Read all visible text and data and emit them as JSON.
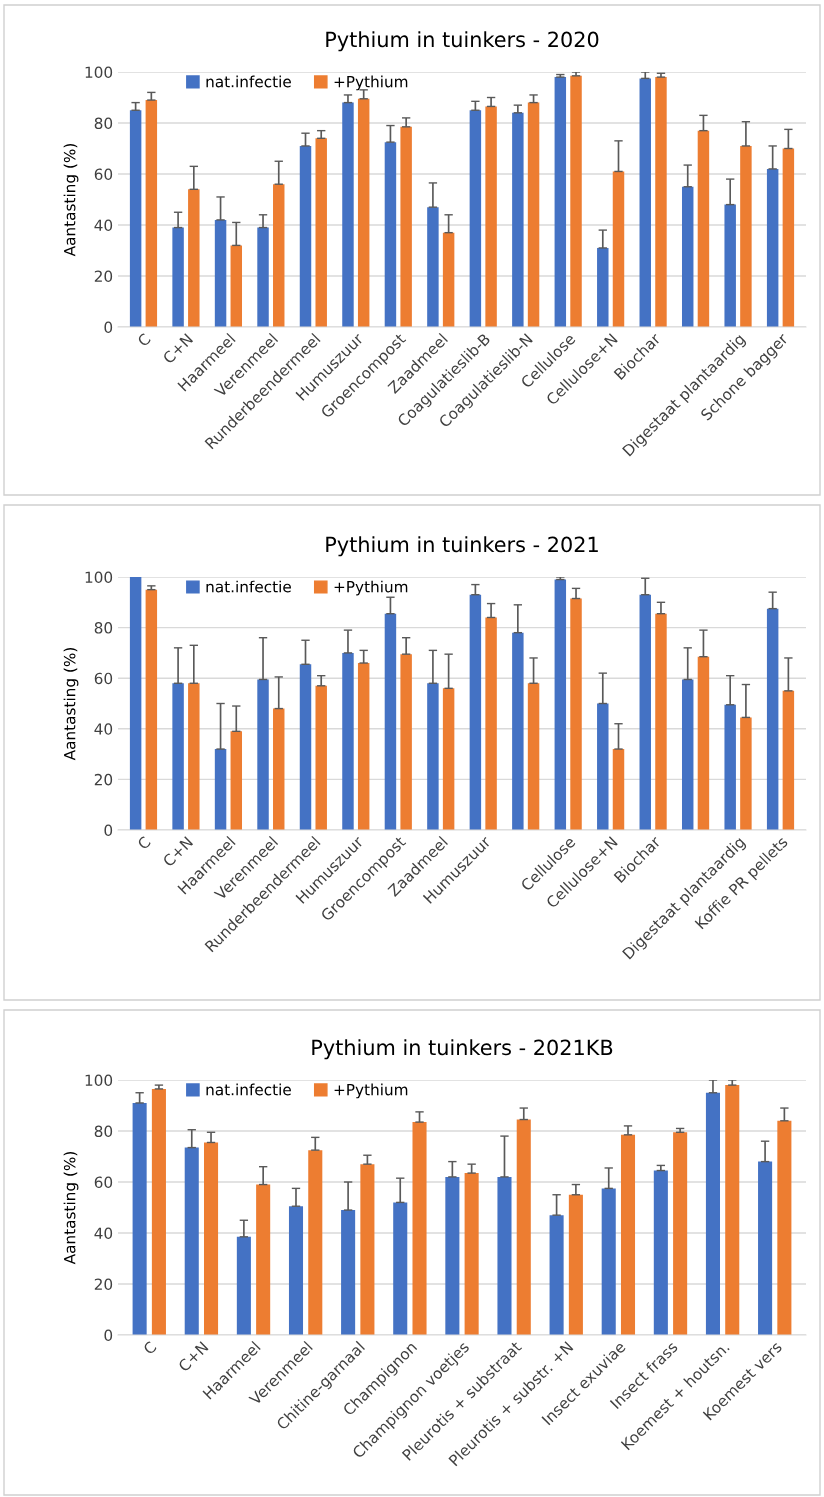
{
  "chart_data": [
    {
      "type": "bar",
      "title": "Pythium in tuinkers - 2020",
      "ylabel": "Aantasting (%)",
      "ylim": [
        0,
        100
      ],
      "yticks": [
        0,
        20,
        40,
        60,
        80,
        100
      ],
      "grid": "y",
      "legend": "top left",
      "categories": [
        "C",
        "C+N",
        "Haarmeel",
        "Verenmeel",
        "Runderbeendermeel",
        "Humuszuur",
        "Groencompost",
        "Zaadmeel",
        "Coagulatieslib-B",
        "Coagulatieslib-N",
        "Cellulose",
        "Cellulose+N",
        "Biochar",
        null,
        "Digestaat plantaardig",
        "Schone bagger"
      ],
      "series": [
        {
          "name": "nat.infectie",
          "color": "#4472c4",
          "values": [
            85,
            39,
            42,
            39,
            71,
            88,
            72.5,
            47,
            85,
            84,
            98,
            31,
            97.5,
            55,
            48,
            62
          ],
          "errors": [
            [
              85,
              88
            ],
            [
              39,
              45
            ],
            [
              42,
              51
            ],
            [
              39,
              44
            ],
            [
              71,
              76
            ],
            [
              88,
              91
            ],
            [
              72.5,
              79
            ],
            [
              47,
              56.5
            ],
            [
              85,
              88.5
            ],
            [
              84,
              87
            ],
            [
              98,
              99
            ],
            [
              31,
              38
            ],
            [
              97.5,
              100
            ],
            [
              55,
              63.5
            ],
            [
              48,
              58
            ],
            [
              62,
              71
            ]
          ]
        },
        {
          "name": "+Pythium",
          "color": "#ed7d31",
          "values": [
            89,
            54,
            32,
            56,
            74,
            89.5,
            78.5,
            37,
            86.5,
            88,
            98.5,
            61,
            98,
            77,
            71,
            70
          ],
          "errors": [
            [
              89,
              92
            ],
            [
              54,
              63
            ],
            [
              32,
              41
            ],
            [
              56,
              65
            ],
            [
              74,
              77
            ],
            [
              89.5,
              93
            ],
            [
              78.5,
              82
            ],
            [
              37,
              44
            ],
            [
              86.5,
              90
            ],
            [
              88,
              91
            ],
            [
              98.5,
              100
            ],
            [
              61,
              73
            ],
            [
              98,
              99.5
            ],
            [
              77,
              83
            ],
            [
              71,
              80.5
            ],
            [
              70,
              77.5
            ]
          ]
        }
      ]
    },
    {
      "type": "bar",
      "title": "Pythium in tuinkers - 2021",
      "ylabel": "Aantasting (%)",
      "ylim": [
        0,
        100
      ],
      "yticks": [
        0,
        20,
        40,
        60,
        80,
        100
      ],
      "grid": "y",
      "legend": "top left",
      "categories": [
        "C",
        "C+N",
        "Haarmeel",
        "Verenmeel",
        "Runderbeendermeel",
        "Humuszuur",
        "Groencompost",
        "Zaadmeel",
        "Humuszuur",
        null,
        "Cellulose",
        "Cellulose+N",
        "Biochar",
        null,
        "Digestaat plantaardig",
        "Koffie PR pellets"
      ],
      "series": [
        {
          "name": "nat.infectie",
          "color": "#4472c4",
          "values": [
            100,
            58,
            32,
            59.5,
            65.5,
            70,
            85.5,
            58,
            93,
            78,
            99,
            50,
            93,
            59.5,
            49.5,
            87.5
          ],
          "errors": [
            null,
            [
              58,
              72
            ],
            [
              32,
              50
            ],
            [
              59.5,
              76
            ],
            [
              65.5,
              75
            ],
            [
              70,
              79
            ],
            [
              85.5,
              92
            ],
            [
              58,
              71
            ],
            [
              93,
              97
            ],
            [
              78,
              89
            ],
            [
              99,
              100
            ],
            [
              50,
              62
            ],
            [
              93,
              99.5
            ],
            [
              59.5,
              72
            ],
            [
              49.5,
              61
            ],
            [
              87.5,
              94
            ]
          ]
        },
        {
          "name": "+Pythium",
          "color": "#ed7d31",
          "values": [
            95,
            58,
            39,
            48,
            57,
            66,
            69.5,
            56,
            84,
            58,
            91.5,
            32,
            85.5,
            68.5,
            44.5,
            55
          ],
          "errors": [
            [
              95,
              96.5
            ],
            [
              58,
              73
            ],
            [
              39,
              49
            ],
            [
              48,
              60.5
            ],
            [
              57,
              61
            ],
            [
              66,
              71
            ],
            [
              69.5,
              76
            ],
            [
              56,
              69.5
            ],
            [
              84,
              89.5
            ],
            [
              58,
              68
            ],
            [
              91.5,
              95.5
            ],
            [
              32,
              42
            ],
            [
              85.5,
              90
            ],
            [
              68.5,
              79
            ],
            [
              44.5,
              57.5
            ],
            [
              55,
              68
            ]
          ]
        }
      ]
    },
    {
      "type": "bar",
      "title": "Pythium in tuinkers - 2021KB",
      "ylabel": "Aantasting (%)",
      "ylim": [
        0,
        100
      ],
      "yticks": [
        0,
        20,
        40,
        60,
        80,
        100
      ],
      "grid": "y",
      "legend": "top left",
      "categories": [
        "C",
        "C+N",
        "Haarmeel",
        "Verenmeel",
        "Chitine-garnaal",
        "Champignon",
        "Champignon voetjes",
        "Pleurotis + substraat",
        "Pleurotis + substr. +N",
        "Insect exuviae",
        "Insect frass",
        "Koemest + houtsn.",
        "Koemest vers"
      ],
      "series": [
        {
          "name": "nat.infectie",
          "color": "#4472c4",
          "values": [
            91,
            73.5,
            38.5,
            50.5,
            49,
            52,
            62,
            62,
            47,
            57.5,
            64.5,
            95,
            68
          ],
          "errors": [
            [
              91,
              95
            ],
            [
              73.5,
              80.5
            ],
            [
              38.5,
              45
            ],
            [
              50.5,
              57.5
            ],
            [
              49,
              60
            ],
            [
              52,
              61.5
            ],
            [
              62,
              68
            ],
            [
              62,
              78
            ],
            [
              47,
              55
            ],
            [
              57.5,
              65.5
            ],
            [
              64.5,
              66.5
            ],
            [
              95,
              100
            ],
            [
              68,
              76
            ]
          ]
        },
        {
          "name": "+Pythium",
          "color": "#ed7d31",
          "values": [
            96.5,
            75.5,
            59,
            72.5,
            67,
            83.5,
            63.5,
            84.5,
            55,
            78.5,
            79.5,
            98,
            84
          ],
          "errors": [
            [
              96.5,
              98
            ],
            [
              75.5,
              79.5
            ],
            [
              59,
              66
            ],
            [
              72.5,
              77.5
            ],
            [
              67,
              70.5
            ],
            [
              83.5,
              87.5
            ],
            [
              63.5,
              67
            ],
            [
              84.5,
              89
            ],
            [
              55,
              59
            ],
            [
              78.5,
              82
            ],
            [
              79.5,
              81
            ],
            [
              98,
              100
            ],
            [
              84,
              89
            ]
          ]
        }
      ]
    }
  ]
}
